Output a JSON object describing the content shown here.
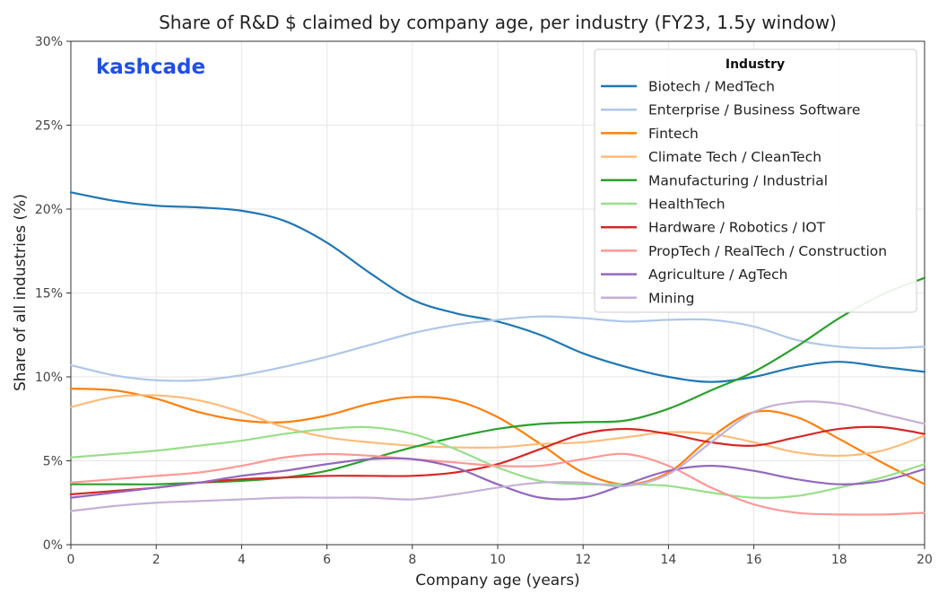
{
  "chart_data": {
    "type": "line",
    "title": "Share of R&D $ claimed by company age, per industry (FY23, 1.5y window)",
    "xlabel": "Company age (years)",
    "ylabel": "Share of all industries (%)",
    "xlim": [
      0,
      20
    ],
    "ylim": [
      0,
      30
    ],
    "x_ticks": [
      0,
      2,
      4,
      6,
      8,
      10,
      12,
      14,
      16,
      18,
      20
    ],
    "y_ticks": [
      0,
      5,
      10,
      15,
      20,
      25,
      30
    ],
    "y_tick_labels": [
      "0%",
      "5%",
      "10%",
      "15%",
      "20%",
      "25%",
      "30%"
    ],
    "grid": true,
    "legend_title": "Industry",
    "legend_position": "top-right",
    "watermark": "kashcade",
    "x": [
      0,
      1,
      2,
      3,
      4,
      5,
      6,
      7,
      8,
      9,
      10,
      11,
      12,
      13,
      14,
      15,
      16,
      17,
      18,
      19,
      20
    ],
    "series": [
      {
        "name": "Biotech / MedTech",
        "color": "#1f77b4",
        "values": [
          21.0,
          20.5,
          20.2,
          20.1,
          19.9,
          19.3,
          18.0,
          16.2,
          14.6,
          13.8,
          13.3,
          12.5,
          11.4,
          10.6,
          10.0,
          9.7,
          10.0,
          10.6,
          10.9,
          10.6,
          10.3
        ]
      },
      {
        "name": "Enterprise / Business Software",
        "color": "#aec7e8",
        "values": [
          10.7,
          10.1,
          9.8,
          9.8,
          10.1,
          10.6,
          11.2,
          11.9,
          12.6,
          13.1,
          13.4,
          13.6,
          13.5,
          13.3,
          13.4,
          13.4,
          13.0,
          12.2,
          11.8,
          11.7,
          11.8
        ]
      },
      {
        "name": "Fintech",
        "color": "#ff7f0e",
        "values": [
          9.3,
          9.2,
          8.7,
          7.9,
          7.4,
          7.3,
          7.7,
          8.4,
          8.8,
          8.6,
          7.6,
          6.0,
          4.3,
          3.6,
          4.3,
          6.4,
          7.9,
          7.6,
          6.3,
          4.9,
          3.6
        ]
      },
      {
        "name": "Climate Tech / CleanTech",
        "color": "#ffbb78",
        "values": [
          8.2,
          8.8,
          8.9,
          8.6,
          7.9,
          7.0,
          6.4,
          6.1,
          5.9,
          5.8,
          5.8,
          6.0,
          6.1,
          6.4,
          6.7,
          6.6,
          6.1,
          5.5,
          5.3,
          5.6,
          6.5
        ]
      },
      {
        "name": "Manufacturing / Industrial",
        "color": "#2ca02c",
        "values": [
          3.6,
          3.6,
          3.6,
          3.7,
          3.8,
          4.0,
          4.4,
          5.1,
          5.8,
          6.4,
          6.9,
          7.2,
          7.3,
          7.4,
          8.1,
          9.2,
          10.3,
          11.8,
          13.5,
          14.9,
          15.9
        ]
      },
      {
        "name": "HealthTech",
        "color": "#98df8a",
        "values": [
          5.2,
          5.4,
          5.6,
          5.9,
          6.2,
          6.6,
          6.9,
          7.0,
          6.6,
          5.7,
          4.6,
          3.8,
          3.6,
          3.6,
          3.5,
          3.1,
          2.8,
          2.9,
          3.4,
          4.0,
          4.8
        ]
      },
      {
        "name": "Hardware / Robotics / IOT",
        "color": "#d62728",
        "values": [
          3.0,
          3.2,
          3.4,
          3.7,
          3.9,
          4.0,
          4.1,
          4.1,
          4.1,
          4.3,
          4.8,
          5.7,
          6.6,
          6.9,
          6.6,
          6.1,
          5.9,
          6.4,
          6.9,
          7.0,
          6.6
        ]
      },
      {
        "name": "PropTech / RealTech / Construction",
        "color": "#ff9896",
        "values": [
          3.7,
          3.9,
          4.1,
          4.3,
          4.7,
          5.2,
          5.4,
          5.3,
          5.1,
          4.9,
          4.7,
          4.7,
          5.1,
          5.4,
          4.7,
          3.4,
          2.4,
          1.9,
          1.8,
          1.8,
          1.9
        ]
      },
      {
        "name": "Agriculture / AgTech",
        "color": "#9467bd",
        "values": [
          2.8,
          3.1,
          3.4,
          3.7,
          4.1,
          4.4,
          4.8,
          5.1,
          5.1,
          4.6,
          3.6,
          2.8,
          2.8,
          3.6,
          4.4,
          4.7,
          4.4,
          3.9,
          3.6,
          3.8,
          4.5
        ]
      },
      {
        "name": "Mining",
        "color": "#c5b0d5",
        "values": [
          2.0,
          2.3,
          2.5,
          2.6,
          2.7,
          2.8,
          2.8,
          2.8,
          2.7,
          3.0,
          3.4,
          3.7,
          3.7,
          3.5,
          4.2,
          6.1,
          7.9,
          8.5,
          8.4,
          7.8,
          7.2
        ]
      }
    ]
  }
}
